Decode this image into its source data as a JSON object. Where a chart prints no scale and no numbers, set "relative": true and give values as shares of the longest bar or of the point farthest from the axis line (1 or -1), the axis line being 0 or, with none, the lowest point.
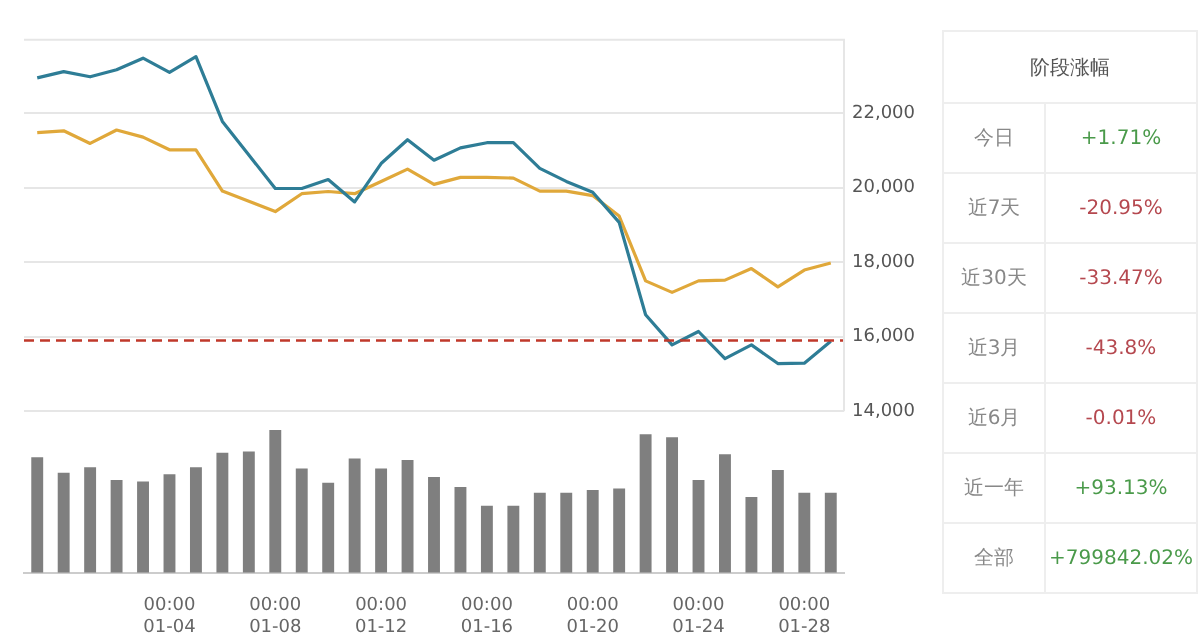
{
  "chart_data": [
    {
      "type": "line",
      "categories": [
        null,
        null,
        null,
        null,
        null,
        null,
        null,
        null,
        null,
        null,
        null,
        null,
        null,
        null,
        null,
        null,
        null,
        null,
        null,
        null,
        null,
        null,
        null,
        null,
        null,
        null,
        null,
        null,
        null,
        null,
        null
      ],
      "series": [
        {
          "color": "#2e7d96",
          "values": [
            22950,
            23120,
            22980,
            23170,
            23480,
            23100,
            23520,
            21780,
            20880,
            19980,
            19980,
            20220,
            19620,
            20650,
            21290,
            20740,
            21070,
            21210,
            21210,
            20520,
            20170,
            19880,
            19070,
            16590,
            15780,
            16140,
            15410,
            15780,
            15280,
            15290,
            15880
          ]
        },
        {
          "color": "#e0a83a",
          "values": [
            21480,
            21530,
            21190,
            21550,
            21360,
            21020,
            21020,
            19910,
            19640,
            19360,
            19840,
            19900,
            19840,
            20170,
            20500,
            20090,
            20280,
            20280,
            20260,
            19910,
            19910,
            19790,
            19240,
            17500,
            17190,
            17500,
            17520,
            17830,
            17340,
            17790,
            17980
          ]
        }
      ],
      "ylim": [
        14000,
        24000
      ],
      "yticks": [
        {
          "value": 14000,
          "label": "14,000"
        },
        {
          "value": 16000,
          "label": "16,000"
        },
        {
          "value": 18000,
          "label": "18,000"
        },
        {
          "value": 20000,
          "label": "20,000"
        },
        {
          "value": 22000,
          "label": "22,000"
        }
      ],
      "grid": "y",
      "tick_labels": "y",
      "marker": "none",
      "ref_lines": [
        {
          "axis": "y",
          "value": 15900,
          "color": "#c0392b",
          "line_style": "dashed"
        }
      ]
    },
    {
      "type": "bar",
      "relative": true,
      "tick_labels": "x",
      "categories": [
        null,
        null,
        null,
        null,
        null,
        "00:00\n01-04",
        null,
        null,
        null,
        "00:00\n01-08",
        null,
        null,
        null,
        "00:00\n01-12",
        null,
        null,
        null,
        "00:00\n01-16",
        null,
        null,
        null,
        "00:00\n01-20",
        null,
        null,
        null,
        "00:00\n01-24",
        null,
        null,
        null,
        "00:00\n01-28",
        null
      ],
      "values": [
        0.81,
        0.7,
        0.74,
        0.65,
        0.64,
        0.69,
        0.74,
        0.84,
        0.85,
        1,
        0.73,
        0.63,
        0.8,
        0.73,
        0.79,
        0.67,
        0.6,
        0.47,
        0.47,
        0.56,
        0.56,
        0.58,
        0.59,
        0.97,
        0.95,
        0.65,
        0.83,
        0.53,
        0.72,
        0.56,
        0.56
      ],
      "color": "#7f7f7f"
    },
    {
      "type": "other",
      "title": "阶段涨幅",
      "categories": [
        "今日",
        "近7天",
        "近30天",
        "近3月",
        "近6月",
        "近一年",
        "全部"
      ],
      "value_labels": [
        "+1.71%",
        "-20.95%",
        "-33.47%",
        "-43.8%",
        "-0.01%",
        "+93.13%",
        "+799842.02%"
      ],
      "colors": [
        "#4a9a4a",
        "#b5484f",
        "#b5484f",
        "#b5484f",
        "#b5484f",
        "#4a9a4a",
        "#4a9a4a"
      ]
    }
  ]
}
